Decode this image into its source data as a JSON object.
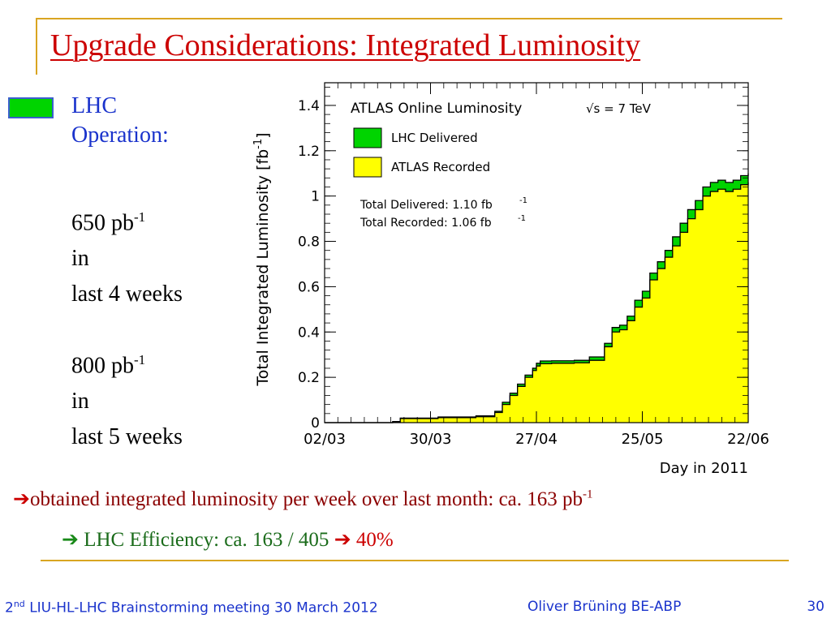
{
  "slide": {
    "title": "Upgrade Considerations: Integrated Luminosity",
    "legend_label_line1": "LHC",
    "legend_label_line2": "Operation:",
    "stat1_value": "650 pb",
    "stat1_exp": "-1",
    "stat1_in": "in",
    "stat1_period": "last 4 weeks",
    "stat2_value": "800 pb",
    "stat2_exp": "-1",
    "stat2_in": "in",
    "stat2_period": "last 5 weeks",
    "conclusion_text": "obtained integrated luminosity per week over last month: ca. 163 pb",
    "conclusion_exp": "-1",
    "efficiency_text": "LHC Efficiency: ca. 163 / 405",
    "efficiency_result": "40%",
    "footer_left_prefix": "2",
    "footer_left_sup": "nd",
    "footer_left_rest": " LIU-HL-LHC Brainstorming meeting 30 March 2012",
    "footer_center": "Oliver Brüning BE-ABP",
    "footer_right": "30",
    "colors": {
      "title": "#cc0000",
      "accent_gold": "#d9a521",
      "blue": "#1a33cc",
      "delivered": "#00d400",
      "recorded": "#ffff00"
    }
  },
  "chart_data": {
    "type": "area",
    "title": "ATLAS Online Luminosity",
    "energy_label": "√s = 7 TeV",
    "xlabel": "Day in 2011",
    "ylabel": "Total Integrated Luminosity [fb",
    "ylabel_exp": "-1",
    "ylabel_close": "]",
    "xlim": [
      0,
      112
    ],
    "ylim": [
      0,
      1.5
    ],
    "x_ticks": [
      0,
      28,
      56,
      84,
      112
    ],
    "x_tick_labels": [
      "02/03",
      "30/03",
      "27/04",
      "25/05",
      "22/06"
    ],
    "y_ticks": [
      0,
      0.2,
      0.4,
      0.6,
      0.8,
      1,
      1.2,
      1.4
    ],
    "y_tick_labels": [
      "0",
      "0.2",
      "0.4",
      "0.6",
      "0.8",
      "1",
      "1.2",
      "1.4"
    ],
    "legend": [
      "LHC Delivered",
      "ATLAS Recorded"
    ],
    "totals": [
      "Total Delivered: 1.10 fb",
      "Total Recorded: 1.06 fb"
    ],
    "totals_exp": "-1",
    "series": [
      {
        "name": "LHC Delivered",
        "color": "#00d400",
        "x": [
          0,
          14,
          18,
          20,
          30,
          40,
          45,
          47,
          49,
          51,
          53,
          55,
          56,
          57,
          58,
          60,
          66,
          70,
          74,
          76,
          78,
          80,
          82,
          84,
          86,
          88,
          90,
          92,
          94,
          96,
          98,
          100,
          102,
          104,
          106,
          108,
          110,
          112
        ],
        "y": [
          0,
          0,
          0.005,
          0.02,
          0.025,
          0.03,
          0.05,
          0.09,
          0.13,
          0.17,
          0.21,
          0.24,
          0.262,
          0.272,
          0.272,
          0.273,
          0.275,
          0.29,
          0.35,
          0.42,
          0.43,
          0.47,
          0.54,
          0.58,
          0.66,
          0.71,
          0.76,
          0.82,
          0.88,
          0.94,
          0.98,
          1.04,
          1.06,
          1.07,
          1.06,
          1.07,
          1.09,
          1.1
        ]
      },
      {
        "name": "ATLAS Recorded",
        "color": "#ffff00",
        "x": [
          0,
          14,
          18,
          20,
          30,
          40,
          45,
          47,
          49,
          51,
          53,
          55,
          56,
          57,
          58,
          60,
          66,
          70,
          74,
          76,
          78,
          80,
          82,
          84,
          86,
          88,
          90,
          92,
          94,
          96,
          98,
          100,
          102,
          104,
          106,
          108,
          110,
          112
        ],
        "y": [
          0,
          0,
          0.004,
          0.018,
          0.022,
          0.026,
          0.045,
          0.08,
          0.12,
          0.16,
          0.2,
          0.23,
          0.25,
          0.26,
          0.26,
          0.262,
          0.264,
          0.275,
          0.335,
          0.4,
          0.41,
          0.45,
          0.51,
          0.55,
          0.63,
          0.68,
          0.73,
          0.78,
          0.84,
          0.9,
          0.94,
          1.0,
          1.02,
          1.03,
          1.02,
          1.03,
          1.05,
          1.06
        ]
      }
    ]
  }
}
